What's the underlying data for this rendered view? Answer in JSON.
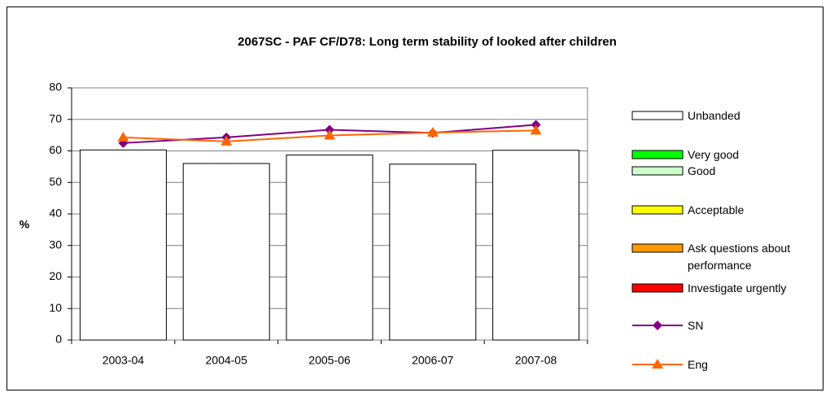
{
  "chart_data": {
    "type": "bar",
    "title": "2067SC - PAF CF/D78: Long term stability of looked after children",
    "y_label": "%",
    "categories": [
      "2003-04",
      "2004-05",
      "2005-06",
      "2006-07",
      "2007-08"
    ],
    "series": [
      {
        "name": "Unbanded",
        "type": "bar",
        "color": "#ffffff",
        "values": [
          60.3,
          56,
          58.7,
          55.8,
          60.2
        ]
      },
      {
        "name": "Very good",
        "type": "bar",
        "color": "#00ff00",
        "values": [
          null,
          null,
          null,
          null,
          null
        ]
      },
      {
        "name": "Good",
        "type": "bar",
        "color": "#ccffcc",
        "values": [
          null,
          null,
          null,
          null,
          null
        ]
      },
      {
        "name": "Acceptable",
        "type": "bar",
        "color": "#ffff00",
        "values": [
          null,
          null,
          null,
          null,
          null
        ]
      },
      {
        "name": "Ask questions about performance",
        "type": "bar",
        "color": "#ff9900",
        "values": [
          null,
          null,
          null,
          null,
          null
        ]
      },
      {
        "name": "Investigate urgently",
        "type": "bar",
        "color": "#ff0000",
        "values": [
          null,
          null,
          null,
          null,
          null
        ]
      },
      {
        "name": "SN",
        "type": "line",
        "marker": "diamond",
        "color": "#800080",
        "values": [
          62.5,
          64.3,
          66.7,
          65.7,
          68.3
        ]
      },
      {
        "name": "Eng",
        "type": "line",
        "marker": "triangle",
        "color": "#ff6600",
        "values": [
          64.3,
          63,
          64.9,
          65.8,
          66.5
        ]
      }
    ],
    "ylim": [
      0,
      80
    ],
    "yticks": [
      0,
      10,
      20,
      30,
      40,
      50,
      60,
      70,
      80
    ],
    "grid": true,
    "legend": "right"
  }
}
